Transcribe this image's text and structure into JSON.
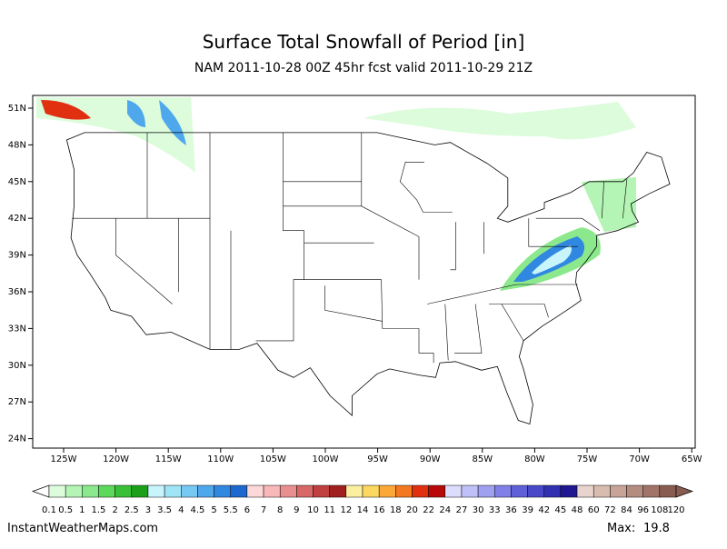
{
  "header": {
    "title": "Surface Total Snowfall of Period [in]",
    "subtitle": "NAM 2011-10-28 00Z 45hr fcst valid 2011-10-29 21Z"
  },
  "map": {
    "lat_labels": [
      "51N",
      "48N",
      "45N",
      "42N",
      "39N",
      "36N",
      "33N",
      "30N",
      "27N",
      "24N"
    ],
    "lon_labels": [
      "125W",
      "120W",
      "115W",
      "110W",
      "105W",
      "100W",
      "95W",
      "90W",
      "85W",
      "80W",
      "75W",
      "70W",
      "65W"
    ]
  },
  "colorbar": {
    "levels": [
      0.1,
      0.5,
      1,
      1.5,
      2,
      2.5,
      3,
      3.5,
      4,
      4.5,
      5,
      5.5,
      6,
      7,
      8,
      9,
      10,
      11,
      12,
      14,
      16,
      18,
      20,
      22,
      24,
      27,
      30,
      33,
      36,
      39,
      42,
      45,
      48,
      60,
      72,
      84,
      96,
      108,
      120
    ],
    "colors": [
      "#dcfcdc",
      "#b4f4b4",
      "#8ce88c",
      "#5cd85c",
      "#38c038",
      "#1ca01c",
      "#c8f4fc",
      "#a0e4f8",
      "#78c8f4",
      "#50a8ec",
      "#3088e0",
      "#1c68d0",
      "#fcd8d8",
      "#f8b8b8",
      "#e89090",
      "#d86868",
      "#c04040",
      "#a02020",
      "#fcf0a0",
      "#fcd860",
      "#fca838",
      "#f47820",
      "#e03010",
      "#b80808",
      "#dcdcfc",
      "#c0c0f8",
      "#a0a0f0",
      "#8080e8",
      "#6060d8",
      "#4848c8",
      "#3030b0",
      "#201890",
      "#e8d4cc",
      "#d8bcb0",
      "#c8a498",
      "#b48c80",
      "#a07468",
      "#885c50"
    ]
  },
  "footer": {
    "source": "InstantWeatherMaps.com",
    "max_label": "Max:",
    "max_value": 19.8
  }
}
